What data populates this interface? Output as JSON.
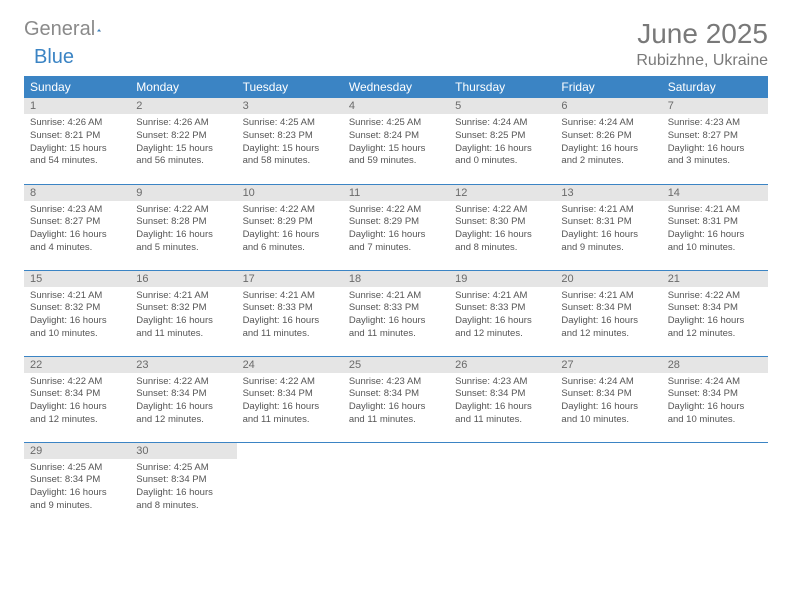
{
  "brand": {
    "part1": "General",
    "part2": "Blue"
  },
  "title": "June 2025",
  "location": "Rubizhne, Ukraine",
  "colors": {
    "header_bg": "#3b84c4",
    "header_fg": "#ffffff",
    "daynum_bg": "#e5e5e5",
    "daynum_fg": "#6a6a6a",
    "border": "#3b84c4",
    "page_bg": "#ffffff",
    "title_color": "#797979",
    "logo_gray": "#8a8a8a",
    "logo_blue": "#3b84c4"
  },
  "weekdays": [
    "Sunday",
    "Monday",
    "Tuesday",
    "Wednesday",
    "Thursday",
    "Friday",
    "Saturday"
  ],
  "grid": {
    "columns": 7,
    "rows": 5
  },
  "days": [
    {
      "n": 1,
      "sr": "4:26 AM",
      "ss": "8:21 PM",
      "dl": "15 hours and 54 minutes."
    },
    {
      "n": 2,
      "sr": "4:26 AM",
      "ss": "8:22 PM",
      "dl": "15 hours and 56 minutes."
    },
    {
      "n": 3,
      "sr": "4:25 AM",
      "ss": "8:23 PM",
      "dl": "15 hours and 58 minutes."
    },
    {
      "n": 4,
      "sr": "4:25 AM",
      "ss": "8:24 PM",
      "dl": "15 hours and 59 minutes."
    },
    {
      "n": 5,
      "sr": "4:24 AM",
      "ss": "8:25 PM",
      "dl": "16 hours and 0 minutes."
    },
    {
      "n": 6,
      "sr": "4:24 AM",
      "ss": "8:26 PM",
      "dl": "16 hours and 2 minutes."
    },
    {
      "n": 7,
      "sr": "4:23 AM",
      "ss": "8:27 PM",
      "dl": "16 hours and 3 minutes."
    },
    {
      "n": 8,
      "sr": "4:23 AM",
      "ss": "8:27 PM",
      "dl": "16 hours and 4 minutes."
    },
    {
      "n": 9,
      "sr": "4:22 AM",
      "ss": "8:28 PM",
      "dl": "16 hours and 5 minutes."
    },
    {
      "n": 10,
      "sr": "4:22 AM",
      "ss": "8:29 PM",
      "dl": "16 hours and 6 minutes."
    },
    {
      "n": 11,
      "sr": "4:22 AM",
      "ss": "8:29 PM",
      "dl": "16 hours and 7 minutes."
    },
    {
      "n": 12,
      "sr": "4:22 AM",
      "ss": "8:30 PM",
      "dl": "16 hours and 8 minutes."
    },
    {
      "n": 13,
      "sr": "4:21 AM",
      "ss": "8:31 PM",
      "dl": "16 hours and 9 minutes."
    },
    {
      "n": 14,
      "sr": "4:21 AM",
      "ss": "8:31 PM",
      "dl": "16 hours and 10 minutes."
    },
    {
      "n": 15,
      "sr": "4:21 AM",
      "ss": "8:32 PM",
      "dl": "16 hours and 10 minutes."
    },
    {
      "n": 16,
      "sr": "4:21 AM",
      "ss": "8:32 PM",
      "dl": "16 hours and 11 minutes."
    },
    {
      "n": 17,
      "sr": "4:21 AM",
      "ss": "8:33 PM",
      "dl": "16 hours and 11 minutes."
    },
    {
      "n": 18,
      "sr": "4:21 AM",
      "ss": "8:33 PM",
      "dl": "16 hours and 11 minutes."
    },
    {
      "n": 19,
      "sr": "4:21 AM",
      "ss": "8:33 PM",
      "dl": "16 hours and 12 minutes."
    },
    {
      "n": 20,
      "sr": "4:21 AM",
      "ss": "8:34 PM",
      "dl": "16 hours and 12 minutes."
    },
    {
      "n": 21,
      "sr": "4:22 AM",
      "ss": "8:34 PM",
      "dl": "16 hours and 12 minutes."
    },
    {
      "n": 22,
      "sr": "4:22 AM",
      "ss": "8:34 PM",
      "dl": "16 hours and 12 minutes."
    },
    {
      "n": 23,
      "sr": "4:22 AM",
      "ss": "8:34 PM",
      "dl": "16 hours and 12 minutes."
    },
    {
      "n": 24,
      "sr": "4:22 AM",
      "ss": "8:34 PM",
      "dl": "16 hours and 11 minutes."
    },
    {
      "n": 25,
      "sr": "4:23 AM",
      "ss": "8:34 PM",
      "dl": "16 hours and 11 minutes."
    },
    {
      "n": 26,
      "sr": "4:23 AM",
      "ss": "8:34 PM",
      "dl": "16 hours and 11 minutes."
    },
    {
      "n": 27,
      "sr": "4:24 AM",
      "ss": "8:34 PM",
      "dl": "16 hours and 10 minutes."
    },
    {
      "n": 28,
      "sr": "4:24 AM",
      "ss": "8:34 PM",
      "dl": "16 hours and 10 minutes."
    },
    {
      "n": 29,
      "sr": "4:25 AM",
      "ss": "8:34 PM",
      "dl": "16 hours and 9 minutes."
    },
    {
      "n": 30,
      "sr": "4:25 AM",
      "ss": "8:34 PM",
      "dl": "16 hours and 8 minutes."
    }
  ],
  "labels": {
    "sunrise": "Sunrise:",
    "sunset": "Sunset:",
    "daylight": "Daylight:"
  }
}
